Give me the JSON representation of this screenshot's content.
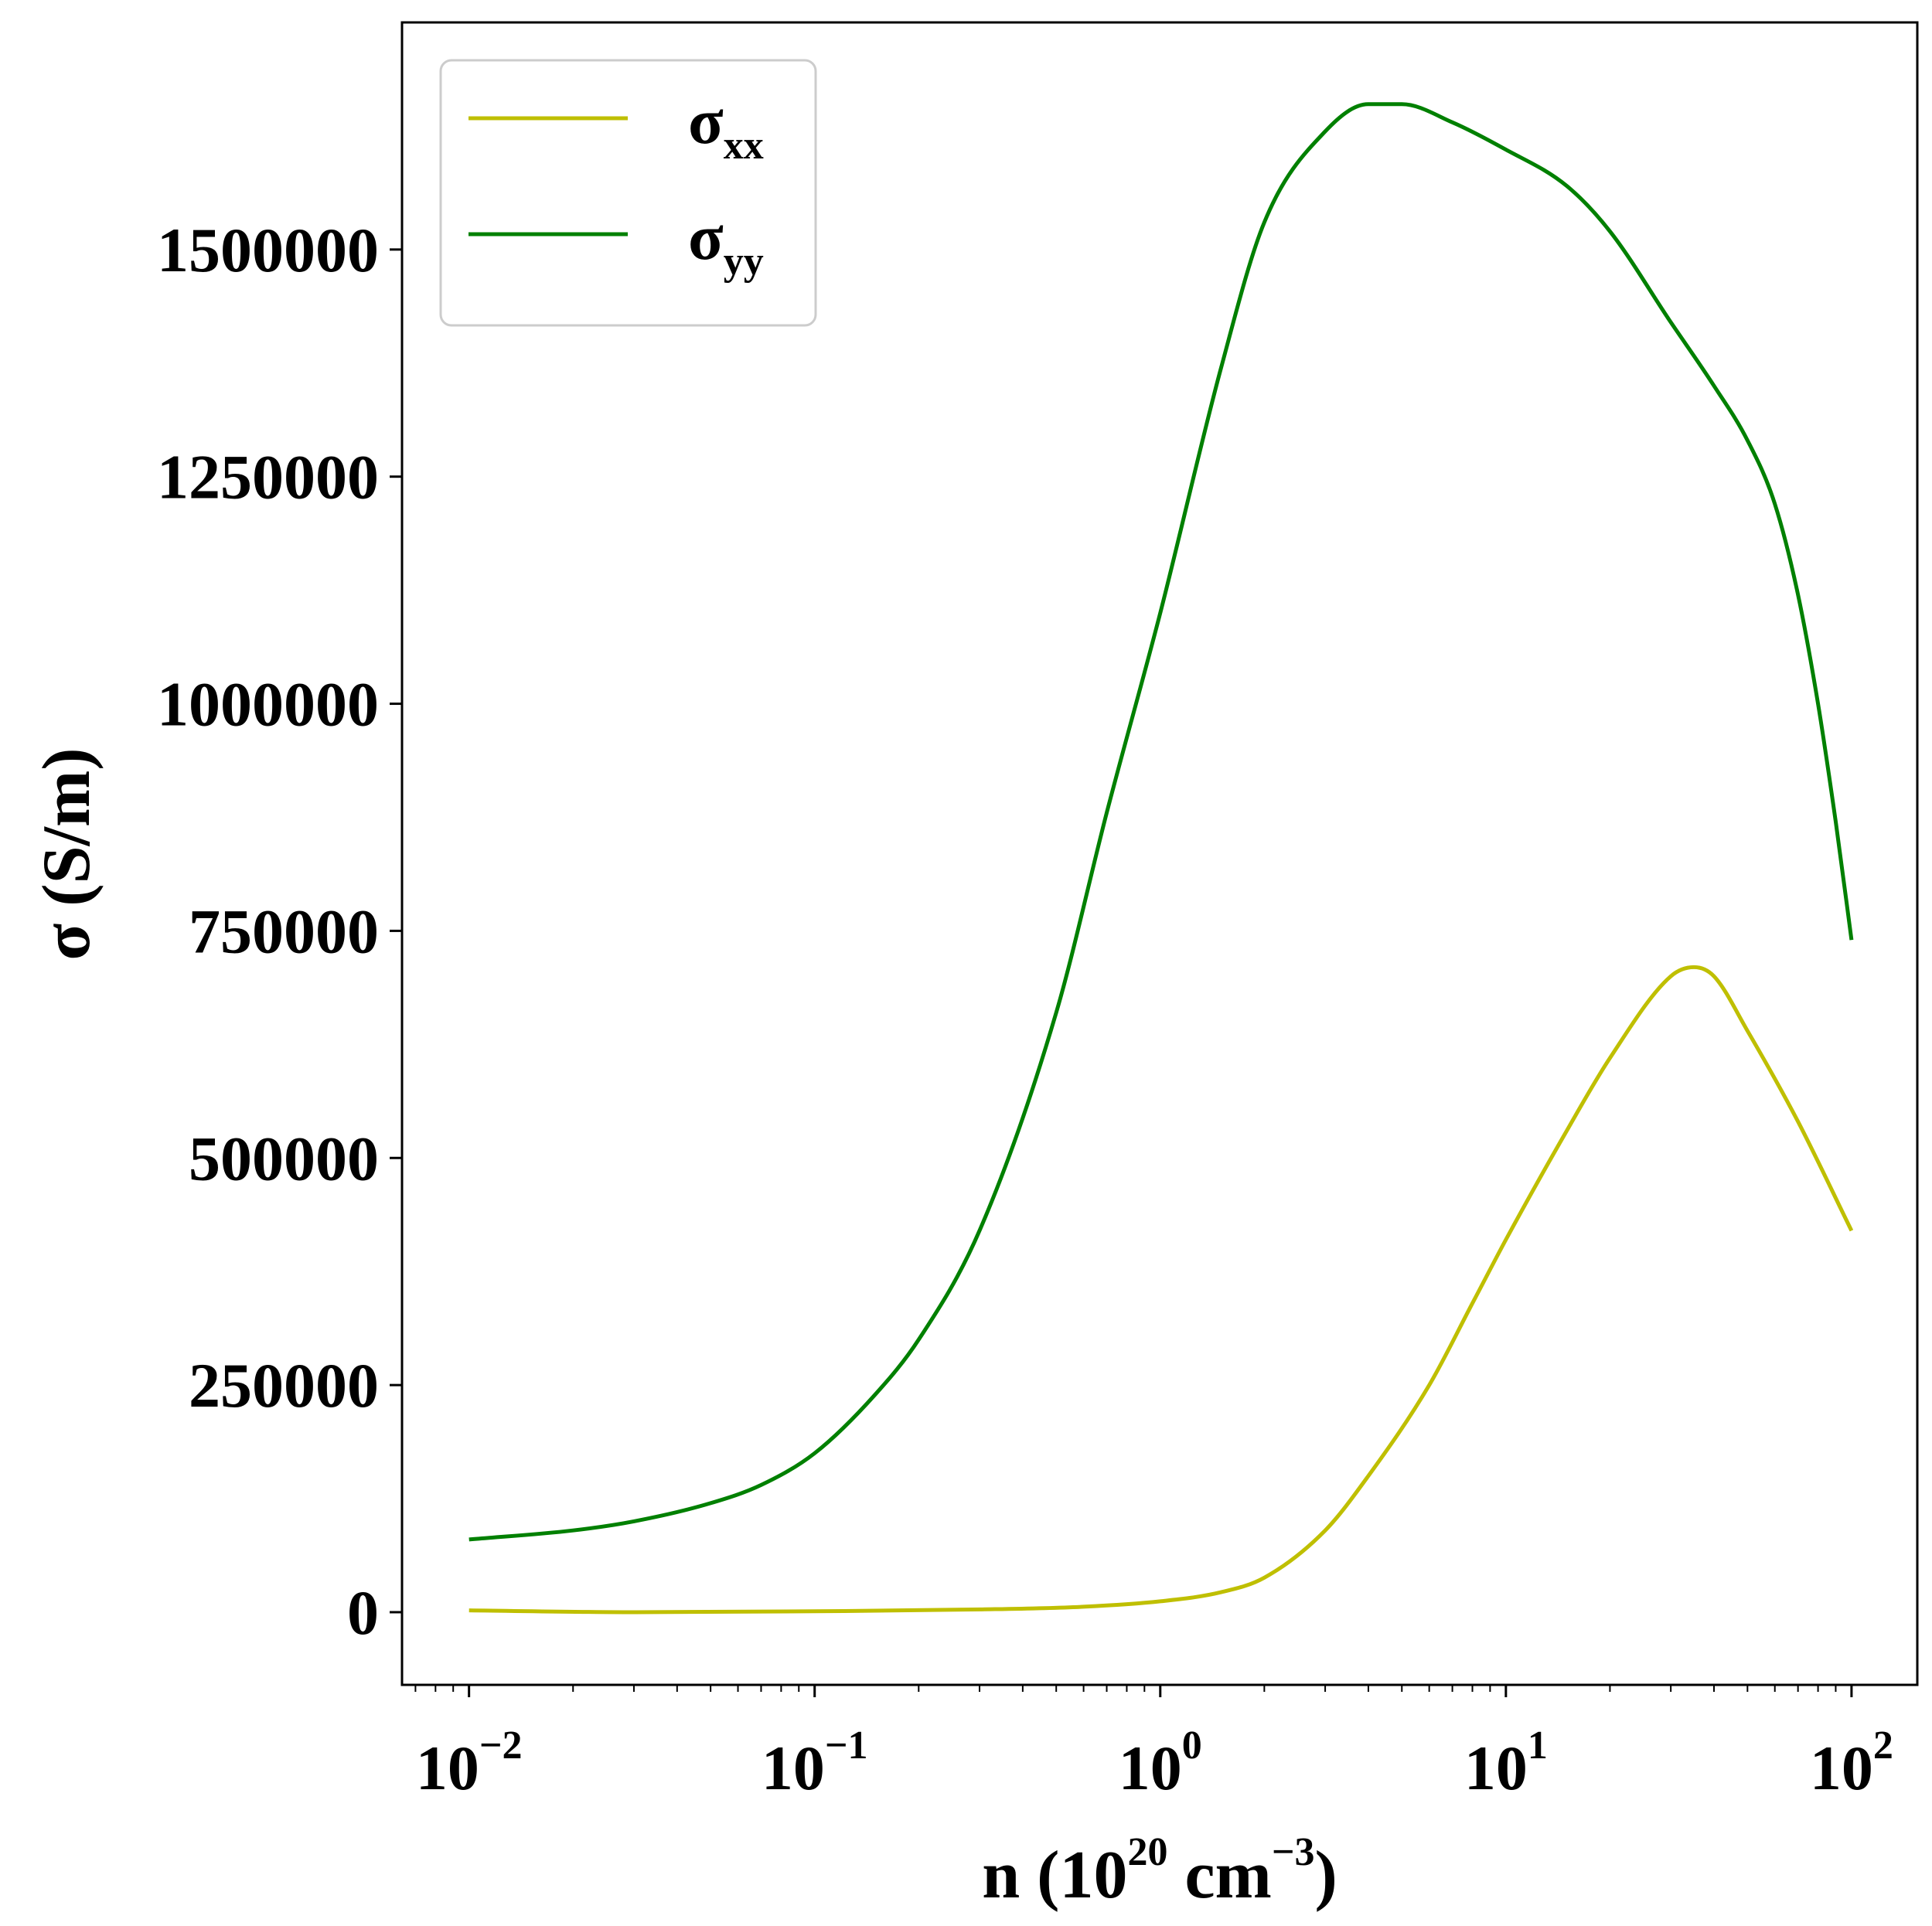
{
  "chart_data": {
    "type": "line",
    "x_scale": "log",
    "xlim": [
      0.0064,
      155
    ],
    "ylim": [
      -80000,
      1750000
    ],
    "xlabel": "n (10^20 cm^-3)",
    "xlabel_parts": {
      "main": "n (10",
      "exp1": "20",
      "mid": " cm",
      "exp2": "−3",
      "end": ")"
    },
    "ylabel": "σ (S/m)",
    "grid": false,
    "legend_position": "top-left",
    "x_ticks": [
      {
        "base": "10",
        "exp": "−2",
        "value": 0.01
      },
      {
        "base": "10",
        "exp": "−1",
        "value": 0.1
      },
      {
        "base": "10",
        "exp": "0",
        "value": 1
      },
      {
        "base": "10",
        "exp": "1",
        "value": 10
      },
      {
        "base": "10",
        "exp": "2",
        "value": 100
      }
    ],
    "y_ticks": [
      {
        "label": "0",
        "value": 0
      },
      {
        "label": "250000",
        "value": 250000
      },
      {
        "label": "500000",
        "value": 500000
      },
      {
        "label": "750000",
        "value": 750000
      },
      {
        "label": "1000000",
        "value": 1000000
      },
      {
        "label": "1250000",
        "value": 1250000
      },
      {
        "label": "1500000",
        "value": 1500000
      }
    ],
    "series": [
      {
        "name": "σxx",
        "name_base": "σ",
        "name_sub": "xx",
        "color": "#bfbf00",
        "x": [
          0.01,
          0.03,
          0.1,
          0.3,
          0.6,
          1,
          1.5,
          2,
          3,
          4,
          6,
          8,
          10,
          15,
          20,
          30,
          35,
          40,
          50,
          70,
          100
        ],
        "y": [
          2000,
          0,
          1000,
          3000,
          6000,
          12000,
          22000,
          38000,
          90000,
          150000,
          250000,
          340000,
          410000,
          530000,
          610000,
          700000,
          710000,
          700000,
          640000,
          540000,
          420000
        ]
      },
      {
        "name": "σyy",
        "name_base": "σ",
        "name_sub": "yy",
        "color": "#008000",
        "x": [
          0.01,
          0.02,
          0.03,
          0.05,
          0.07,
          0.1,
          0.15,
          0.2,
          0.3,
          0.5,
          0.7,
          1,
          1.5,
          2,
          3,
          4,
          5,
          7,
          10,
          15,
          20,
          30,
          40,
          50,
          60,
          70,
          80,
          90,
          100
        ],
        "y": [
          80000,
          90000,
          100000,
          120000,
          140000,
          175000,
          240000,
          300000,
          420000,
          660000,
          880000,
          1100000,
          1370000,
          1530000,
          1630000,
          1660000,
          1660000,
          1640000,
          1610000,
          1570000,
          1520000,
          1420000,
          1350000,
          1290000,
          1220000,
          1120000,
          1000000,
          870000,
          740000
        ]
      }
    ]
  }
}
